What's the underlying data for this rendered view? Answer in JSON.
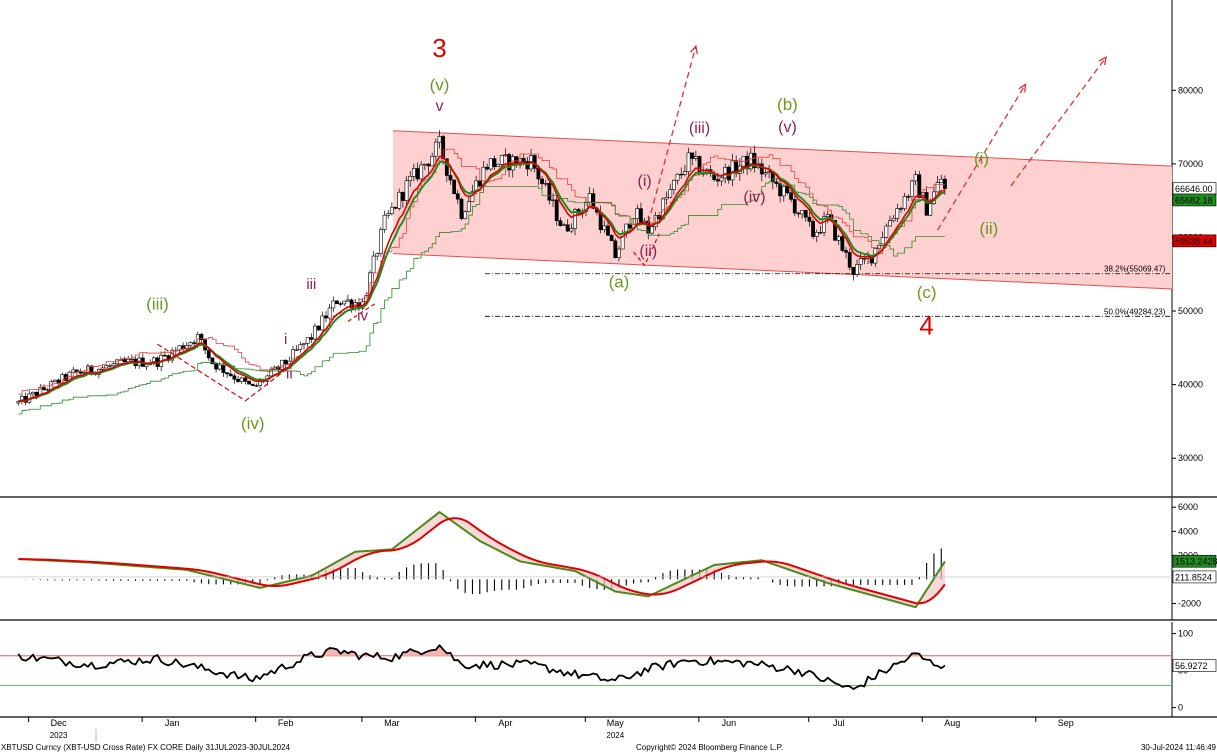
{
  "chart_data": [
    {
      "type": "candlestick",
      "title": "",
      "ylim": [
        25000,
        92000
      ],
      "y_ticks": [
        30000,
        40000,
        50000,
        60000,
        70000,
        80000
      ],
      "x_months": [
        {
          "label": "Dec",
          "date": "2023-12-01"
        },
        {
          "label": "Jan",
          "date": "2024-01-01"
        },
        {
          "label": "Feb",
          "date": "2024-02-01"
        },
        {
          "label": "Mar",
          "date": "2024-03-01"
        },
        {
          "label": "Apr",
          "date": "2024-04-01"
        },
        {
          "label": "May",
          "date": "2024-05-01"
        },
        {
          "label": "Jun",
          "date": "2024-06-01"
        },
        {
          "label": "Jul",
          "date": "2024-07-01"
        },
        {
          "label": "Aug",
          "date": "2024-08-01"
        },
        {
          "label": "Sep",
          "date": "2024-09-01"
        }
      ],
      "year_labels": [
        {
          "label": "2023",
          "date": "2023-12-01"
        },
        {
          "label": "2024",
          "date": "2024-05-01"
        }
      ],
      "price_path": [
        {
          "date": "2023-11-20",
          "price": 37500
        },
        {
          "date": "2023-12-05",
          "price": 41500
        },
        {
          "date": "2023-12-20",
          "price": 43000
        },
        {
          "date": "2023-12-28",
          "price": 43200
        },
        {
          "date": "2024-01-08",
          "price": 46500
        },
        {
          "date": "2024-01-12",
          "price": 43000
        },
        {
          "date": "2024-01-23",
          "price": 39500
        },
        {
          "date": "2024-02-01",
          "price": 43000
        },
        {
          "date": "2024-02-08",
          "price": 46500
        },
        {
          "date": "2024-02-15",
          "price": 51500
        },
        {
          "date": "2024-02-22",
          "price": 51000
        },
        {
          "date": "2024-02-28",
          "price": 62000
        },
        {
          "date": "2024-03-05",
          "price": 67000
        },
        {
          "date": "2024-03-14",
          "price": 72500
        },
        {
          "date": "2024-03-20",
          "price": 63500
        },
        {
          "date": "2024-03-27",
          "price": 70000
        },
        {
          "date": "2024-04-08",
          "price": 70500
        },
        {
          "date": "2024-04-17",
          "price": 61000
        },
        {
          "date": "2024-04-24",
          "price": 65500
        },
        {
          "date": "2024-05-01",
          "price": 57500
        },
        {
          "date": "2024-05-06",
          "price": 63500
        },
        {
          "date": "2024-05-10",
          "price": 61000
        },
        {
          "date": "2024-05-21",
          "price": 70500
        },
        {
          "date": "2024-05-28",
          "price": 68000
        },
        {
          "date": "2024-06-07",
          "price": 70500
        },
        {
          "date": "2024-06-18",
          "price": 65000
        },
        {
          "date": "2024-06-24",
          "price": 60500
        },
        {
          "date": "2024-06-28",
          "price": 62500
        },
        {
          "date": "2024-07-05",
          "price": 55500
        },
        {
          "date": "2024-07-10",
          "price": 57500
        },
        {
          "date": "2024-07-15",
          "price": 62500
        },
        {
          "date": "2024-07-22",
          "price": 67500
        },
        {
          "date": "2024-07-25",
          "price": 64000
        },
        {
          "date": "2024-07-29",
          "price": 68000
        },
        {
          "date": "2024-07-30",
          "price": 66646
        }
      ],
      "channel": {
        "upper": [
          {
            "date": "2024-03-14",
            "price": 74500
          },
          {
            "date": "2024-09-30",
            "price": 69700
          }
        ],
        "lower": [
          {
            "date": "2024-03-14",
            "price": 57800
          },
          {
            "date": "2024-09-30",
            "price": 53000
          }
        ],
        "fill_color": "#ffd0d0",
        "line_color": "#e05050"
      },
      "fib_levels": [
        {
          "label": "38.2%(55069.47)",
          "price": 55069.47
        },
        {
          "label": "50.0%(49284.23)",
          "price": 49284.23
        }
      ],
      "last_price_labels": [
        {
          "text": "66646.00",
          "price": 66646,
          "bg": "#ffffff",
          "fg": "#000000"
        },
        {
          "text": "65682.18",
          "price": 65100,
          "bg": "#1e8c1e",
          "fg": "#ffffff"
        },
        {
          "text": "59538.44",
          "price": 59538.44,
          "bg": "#e00000",
          "fg": "#ffffff"
        }
      ],
      "wave_labels": [
        {
          "text": "3",
          "date": "2024-03-14",
          "price": 84500,
          "color": "#e00000",
          "size": 26
        },
        {
          "text": "(v)",
          "date": "2024-03-14",
          "price": 80000,
          "color": "#6a9a1f",
          "size": 17
        },
        {
          "text": "v",
          "date": "2024-03-14",
          "price": 77200,
          "color": "#8b2252",
          "size": 16
        },
        {
          "text": "(iii)",
          "date": "2023-12-28",
          "price": 50200,
          "color": "#6a9a1f",
          "size": 17
        },
        {
          "text": "(iv)",
          "date": "2024-01-23",
          "price": 34000,
          "color": "#6a9a1f",
          "size": 17
        },
        {
          "text": "i",
          "date": "2024-02-01",
          "price": 45500,
          "color": "#8b2252",
          "size": 15
        },
        {
          "text": "ii",
          "date": "2024-02-02",
          "price": 40800,
          "color": "#8b2252",
          "size": 15
        },
        {
          "text": "iii",
          "date": "2024-02-08",
          "price": 53000,
          "color": "#8b2252",
          "size": 15
        },
        {
          "text": "iv",
          "date": "2024-02-22",
          "price": 48700,
          "color": "#8b2252",
          "size": 15
        },
        {
          "text": "(a)",
          "date": "2024-05-02",
          "price": 53200,
          "color": "#6a9a1f",
          "size": 17
        },
        {
          "text": "(i)",
          "date": "2024-05-09",
          "price": 67000,
          "color": "#8b2252",
          "size": 16
        },
        {
          "text": "(ii)",
          "date": "2024-05-10",
          "price": 57500,
          "color": "#8b2252",
          "size": 16
        },
        {
          "text": "(iii)",
          "date": "2024-05-24",
          "price": 74200,
          "color": "#8b2252",
          "size": 16
        },
        {
          "text": "(iv)",
          "date": "2024-06-08",
          "price": 64800,
          "color": "#8b2252",
          "size": 16
        },
        {
          "text": "(b)",
          "date": "2024-06-17",
          "price": 77300,
          "color": "#6a9a1f",
          "size": 17
        },
        {
          "text": "(v)",
          "date": "2024-06-17",
          "price": 74300,
          "color": "#8b2252",
          "size": 16
        },
        {
          "text": "(c)",
          "date": "2024-07-25",
          "price": 51800,
          "color": "#6a9a1f",
          "size": 17
        },
        {
          "text": "4",
          "date": "2024-07-25",
          "price": 46800,
          "color": "#e00000",
          "size": 26
        },
        {
          "text": "(i)",
          "date": "2024-08-09",
          "price": 70000,
          "color": "#6a9a1f",
          "size": 17
        },
        {
          "text": "(ii)",
          "date": "2024-08-11",
          "price": 60500,
          "color": "#6a9a1f",
          "size": 17
        }
      ],
      "projection_arrows": [
        [
          {
            "date": "2024-05-10",
            "price": 62000
          },
          {
            "date": "2024-05-23",
            "price": 86000
          }
        ],
        [
          {
            "date": "2024-07-28",
            "price": 61000
          },
          {
            "date": "2024-08-21",
            "price": 80800
          }
        ],
        [
          {
            "date": "2024-08-17",
            "price": 67000
          },
          {
            "date": "2024-09-12",
            "price": 84500
          }
        ]
      ]
    },
    {
      "type": "line",
      "name": "MACD",
      "ylim": [
        -3200,
        6600
      ],
      "y_ticks": [
        -2000,
        2000,
        4000,
        6000
      ],
      "labels": [
        {
          "text": "1513.2428",
          "value": 1513.2428,
          "bg": "#1e8c1e",
          "fg": "#ffffff"
        },
        {
          "text": "211.8524",
          "value": 211.8524,
          "bg": "#ffffff",
          "fg": "#000000"
        }
      ],
      "macd_path": [
        {
          "date": "2023-11-20",
          "value": 1700
        },
        {
          "date": "2023-12-10",
          "value": 1400
        },
        {
          "date": "2024-01-05",
          "value": 800
        },
        {
          "date": "2024-01-25",
          "value": -700
        },
        {
          "date": "2024-02-08",
          "value": 300
        },
        {
          "date": "2024-02-20",
          "value": 2300
        },
        {
          "date": "2024-03-01",
          "value": 2500
        },
        {
          "date": "2024-03-14",
          "value": 5600
        },
        {
          "date": "2024-03-25",
          "value": 3200
        },
        {
          "date": "2024-04-05",
          "value": 1500
        },
        {
          "date": "2024-04-20",
          "value": 700
        },
        {
          "date": "2024-05-01",
          "value": -1000
        },
        {
          "date": "2024-05-10",
          "value": -1400
        },
        {
          "date": "2024-05-28",
          "value": 1200
        },
        {
          "date": "2024-06-10",
          "value": 1600
        },
        {
          "date": "2024-06-28",
          "value": -300
        },
        {
          "date": "2024-07-10",
          "value": -1300
        },
        {
          "date": "2024-07-22",
          "value": -2300
        },
        {
          "date": "2024-07-30",
          "value": 1500
        }
      ]
    },
    {
      "type": "line",
      "name": "RSI",
      "ylim": [
        -10,
        113
      ],
      "y_ticks": [
        0,
        50,
        100
      ],
      "overbought": 70,
      "oversold": 30,
      "label": {
        "text": "56.9272",
        "value": 56.9272
      },
      "rsi_path": [
        {
          "date": "2023-11-20",
          "value": 70
        },
        {
          "date": "2023-12-10",
          "value": 58
        },
        {
          "date": "2023-12-28",
          "value": 66
        },
        {
          "date": "2024-01-12",
          "value": 50
        },
        {
          "date": "2024-01-23",
          "value": 38
        },
        {
          "date": "2024-02-08",
          "value": 70
        },
        {
          "date": "2024-02-15",
          "value": 77
        },
        {
          "date": "2024-02-22",
          "value": 70
        },
        {
          "date": "2024-03-01",
          "value": 68
        },
        {
          "date": "2024-03-14",
          "value": 84
        },
        {
          "date": "2024-03-20",
          "value": 58
        },
        {
          "date": "2024-04-08",
          "value": 58
        },
        {
          "date": "2024-04-20",
          "value": 45
        },
        {
          "date": "2024-05-01",
          "value": 36
        },
        {
          "date": "2024-05-10",
          "value": 52
        },
        {
          "date": "2024-05-21",
          "value": 64
        },
        {
          "date": "2024-06-07",
          "value": 60
        },
        {
          "date": "2024-06-20",
          "value": 50
        },
        {
          "date": "2024-07-05",
          "value": 24
        },
        {
          "date": "2024-07-10",
          "value": 40
        },
        {
          "date": "2024-07-22",
          "value": 72
        },
        {
          "date": "2024-07-26",
          "value": 61
        },
        {
          "date": "2024-07-30",
          "value": 56.9272
        }
      ]
    }
  ],
  "footer": {
    "left": "XBTUSD Curncy (XBT-USD Cross Rate) FX CORE  Daily 31JUL2023-30JUL2024",
    "center": "Copyright© 2024 Bloomberg Finance L.P.",
    "right": "30-Jul-2024 11:46:49"
  },
  "colors": {
    "candle_up": "#ffffff",
    "candle_down": "#000000",
    "ma_red": "#e00000",
    "ma_green": "#1e8c1e",
    "wave_green": "#6a9a1f",
    "wave_purple": "#8b2252",
    "wave_red": "#e00000"
  }
}
